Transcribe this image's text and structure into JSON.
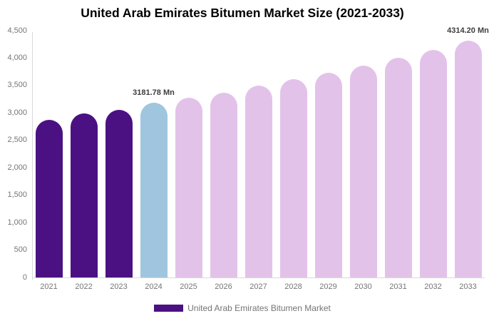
{
  "chart_data": {
    "type": "bar",
    "title": "United Arab Emirates Bitumen Market Size (2021-2033)",
    "categories": [
      "2021",
      "2022",
      "2023",
      "2024",
      "2025",
      "2026",
      "2027",
      "2028",
      "2029",
      "2030",
      "2031",
      "2032",
      "2033"
    ],
    "values": [
      2880,
      2990,
      3060,
      3181.78,
      3280,
      3370,
      3500,
      3620,
      3730,
      3860,
      4010,
      4150,
      4314.2
    ],
    "bar_colors": [
      "#4B1182",
      "#4B1182",
      "#4B1182",
      "#9FC6DE",
      "#E3C2EA",
      "#E3C2EA",
      "#E3C2EA",
      "#E3C2EA",
      "#E3C2EA",
      "#E3C2EA",
      "#E3C2EA",
      "#E3C2EA",
      "#E3C2EA"
    ],
    "point_labels": {
      "2024": "3181.78 Mn",
      "2033": "4314.20 Mn"
    },
    "ylim": [
      0,
      4500
    ],
    "ytick_step": 500,
    "ytick_labels": [
      "0",
      "500",
      "1,000",
      "1,500",
      "2,000",
      "2,500",
      "3,000",
      "3,500",
      "4,000",
      "4,500"
    ],
    "xlabel": "",
    "ylabel": "",
    "grid": false,
    "legend_position": "bottom",
    "legend": [
      {
        "label": "United Arab Emirates Bitumen Market",
        "color": "#4B1182"
      }
    ]
  },
  "colors": {
    "axis_line": "#D9D9D9",
    "tick_label": "#757575",
    "data_label": "#3D3D3D",
    "title": "#000000",
    "background": "#FFFFFF"
  }
}
